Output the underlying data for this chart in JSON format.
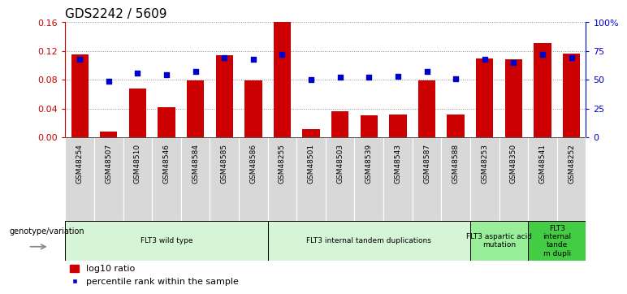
{
  "title": "GDS2242 / 5609",
  "samples": [
    "GSM48254",
    "GSM48507",
    "GSM48510",
    "GSM48546",
    "GSM48584",
    "GSM48585",
    "GSM48586",
    "GSM48255",
    "GSM48501",
    "GSM48503",
    "GSM48539",
    "GSM48543",
    "GSM48587",
    "GSM48588",
    "GSM48253",
    "GSM48350",
    "GSM48541",
    "GSM48252"
  ],
  "log10_ratio": [
    0.115,
    0.008,
    0.068,
    0.042,
    0.079,
    0.114,
    0.079,
    0.16,
    0.011,
    0.036,
    0.03,
    0.031,
    0.079,
    0.032,
    0.11,
    0.108,
    0.131,
    0.116
  ],
  "percentile_rank": [
    68,
    49,
    56,
    54,
    57,
    69,
    68,
    72,
    50,
    52,
    52,
    53,
    57,
    51,
    68,
    65,
    72,
    69
  ],
  "groups": [
    {
      "label": "FLT3 wild type",
      "start": 0,
      "end": 7,
      "color": "#d6f5d6"
    },
    {
      "label": "FLT3 internal tandem duplications",
      "start": 7,
      "end": 14,
      "color": "#d6f5d6"
    },
    {
      "label": "FLT3 aspartic acid\nmutation",
      "start": 14,
      "end": 16,
      "color": "#99ee99"
    },
    {
      "label": "FLT3\ninternal\ntande\nm dupli",
      "start": 16,
      "end": 18,
      "color": "#44cc44"
    }
  ],
  "bar_color": "#cc0000",
  "dot_color": "#0000cc",
  "ylim_left": [
    0,
    0.16
  ],
  "ylim_right": [
    0,
    100
  ],
  "yticks_left": [
    0,
    0.04,
    0.08,
    0.12,
    0.16
  ],
  "yticks_right": [
    0,
    25,
    50,
    75,
    100
  ],
  "ytick_labels_right": [
    "0",
    "25",
    "50",
    "75",
    "100%"
  ],
  "legend_label_bar": "log10 ratio",
  "legend_label_dot": "percentile rank within the sample",
  "group_row_label": "genotype/variation"
}
